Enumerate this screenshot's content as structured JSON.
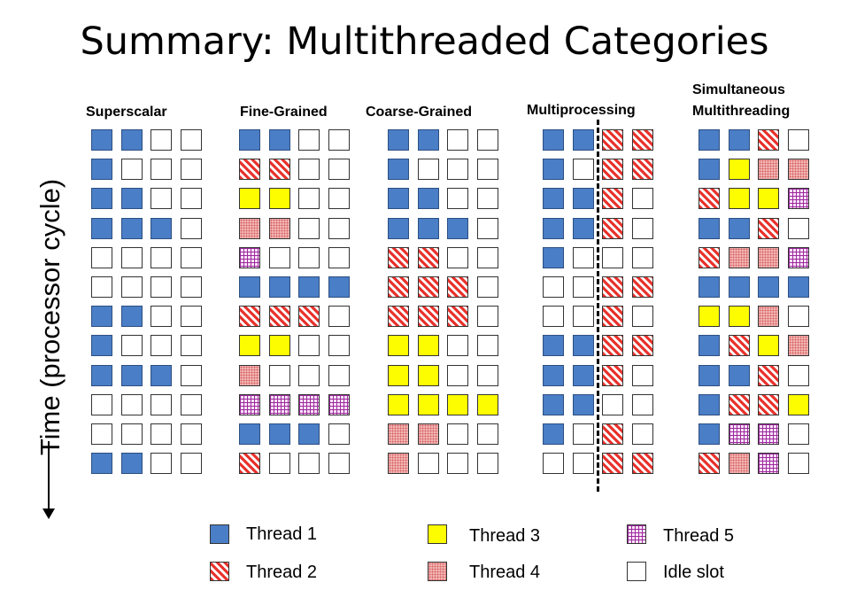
{
  "title": "Summary: Multithreaded Categories",
  "y_axis_label": "Time (processor cycle)",
  "panels": [
    {
      "label_lines": [
        "Superscalar"
      ],
      "rows": [
        [
          1,
          1,
          0,
          0
        ],
        [
          1,
          0,
          0,
          0
        ],
        [
          1,
          1,
          0,
          0
        ],
        [
          1,
          1,
          1,
          0
        ],
        [
          0,
          0,
          0,
          0
        ],
        [
          0,
          0,
          0,
          0
        ],
        [
          1,
          1,
          0,
          0
        ],
        [
          1,
          0,
          0,
          0
        ],
        [
          1,
          1,
          1,
          0
        ],
        [
          0,
          0,
          0,
          0
        ],
        [
          0,
          0,
          0,
          0
        ],
        [
          1,
          1,
          0,
          0
        ]
      ]
    },
    {
      "label_lines": [
        "Fine-Grained"
      ],
      "rows": [
        [
          1,
          1,
          0,
          0
        ],
        [
          2,
          2,
          0,
          0
        ],
        [
          3,
          3,
          0,
          0
        ],
        [
          4,
          4,
          0,
          0
        ],
        [
          5,
          0,
          0,
          0
        ],
        [
          1,
          1,
          1,
          1
        ],
        [
          2,
          2,
          2,
          0
        ],
        [
          3,
          3,
          0,
          0
        ],
        [
          4,
          0,
          0,
          0
        ],
        [
          5,
          5,
          5,
          5
        ],
        [
          1,
          1,
          1,
          0
        ],
        [
          2,
          0,
          0,
          0
        ]
      ]
    },
    {
      "label_lines": [
        "Coarse-Grained"
      ],
      "rows": [
        [
          1,
          1,
          0,
          0
        ],
        [
          1,
          0,
          0,
          0
        ],
        [
          1,
          1,
          0,
          0
        ],
        [
          1,
          1,
          1,
          0
        ],
        [
          2,
          2,
          0,
          0
        ],
        [
          2,
          2,
          2,
          0
        ],
        [
          2,
          2,
          2,
          0
        ],
        [
          3,
          3,
          0,
          0
        ],
        [
          3,
          3,
          0,
          0
        ],
        [
          3,
          3,
          3,
          3
        ],
        [
          4,
          4,
          0,
          0
        ],
        [
          4,
          0,
          0,
          0
        ]
      ]
    },
    {
      "label_lines": [
        "Multiprocessing"
      ],
      "rows": [
        [
          1,
          1,
          2,
          2
        ],
        [
          1,
          0,
          2,
          2
        ],
        [
          1,
          1,
          2,
          0
        ],
        [
          1,
          1,
          2,
          0
        ],
        [
          1,
          0,
          0,
          0
        ],
        [
          0,
          0,
          2,
          2
        ],
        [
          0,
          0,
          2,
          0
        ],
        [
          1,
          1,
          2,
          2
        ],
        [
          1,
          1,
          2,
          0
        ],
        [
          1,
          1,
          0,
          0
        ],
        [
          1,
          0,
          2,
          0
        ],
        [
          0,
          0,
          2,
          2
        ]
      ]
    },
    {
      "label_lines": [
        "Simultaneous",
        "Multithreading"
      ],
      "rows": [
        [
          1,
          1,
          2,
          0
        ],
        [
          1,
          3,
          4,
          4
        ],
        [
          2,
          3,
          3,
          5
        ],
        [
          1,
          1,
          2,
          0
        ],
        [
          2,
          4,
          4,
          5
        ],
        [
          1,
          1,
          1,
          1
        ],
        [
          3,
          3,
          4,
          0
        ],
        [
          1,
          2,
          3,
          4
        ],
        [
          1,
          1,
          2,
          0
        ],
        [
          1,
          2,
          2,
          3
        ],
        [
          1,
          5,
          5,
          0
        ],
        [
          2,
          4,
          5,
          0
        ]
      ]
    }
  ],
  "legend": [
    {
      "thread": 1,
      "label": "Thread 1"
    },
    {
      "thread": 3,
      "label": "Thread 3"
    },
    {
      "thread": 5,
      "label": "Thread 5"
    },
    {
      "thread": 2,
      "label": "Thread 2"
    },
    {
      "thread": 4,
      "label": "Thread 4"
    },
    {
      "thread": 0,
      "label": "Idle slot"
    }
  ],
  "colors": {
    "thread1": "#4a7ec6",
    "thread2": "#e8322c",
    "thread3": "#fdfd00",
    "thread4": "#f3c0c0",
    "thread5": "#9c2a9c",
    "idle": "#ffffff"
  }
}
